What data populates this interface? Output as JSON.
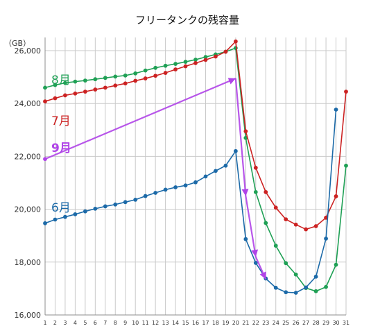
{
  "chart_data": {
    "type": "line",
    "title": "フリータンクの残容量",
    "unit_label": "（GB）",
    "ylim": [
      16000,
      26500
    ],
    "yticks": [
      16000,
      18000,
      20000,
      22000,
      24000,
      26000
    ],
    "ytick_labels": [
      "16,000",
      "18,000",
      "20,000",
      "22,000",
      "24,000",
      "26,000"
    ],
    "xlim": [
      1,
      31
    ],
    "x_categories": [
      "1",
      "2",
      "3",
      "4",
      "5",
      "6",
      "7",
      "8",
      "9",
      "10",
      "11",
      "12",
      "13",
      "14",
      "15",
      "16",
      "17",
      "18",
      "19",
      "20",
      "21",
      "22",
      "23",
      "24",
      "25",
      "26",
      "27",
      "28",
      "29",
      "30",
      "31"
    ],
    "grid": true,
    "series": [
      {
        "name": "8月",
        "color": "#1fa055",
        "x": [
          1,
          2,
          3,
          4,
          5,
          6,
          7,
          8,
          9,
          10,
          11,
          12,
          13,
          14,
          15,
          16,
          17,
          18,
          19,
          20,
          21,
          22,
          23,
          24,
          25,
          26,
          27,
          28,
          29,
          30,
          31
        ],
        "values": [
          24600,
          24700,
          24780,
          24830,
          24870,
          24920,
          24970,
          25020,
          25060,
          25140,
          25250,
          25350,
          25430,
          25500,
          25580,
          25660,
          25760,
          25860,
          25960,
          26100,
          22700,
          20650,
          19480,
          18620,
          17960,
          17530,
          17020,
          16900,
          17060,
          17900,
          21650
        ]
      },
      {
        "name": "7月",
        "color": "#cc2222",
        "x": [
          1,
          2,
          3,
          4,
          5,
          6,
          7,
          8,
          9,
          10,
          11,
          12,
          13,
          14,
          15,
          16,
          17,
          18,
          19,
          20,
          21,
          22,
          23,
          24,
          25,
          26,
          27,
          28,
          29,
          30,
          31
        ],
        "values": [
          24080,
          24200,
          24310,
          24380,
          24450,
          24530,
          24600,
          24680,
          24760,
          24860,
          24950,
          25050,
          25160,
          25290,
          25410,
          25530,
          25650,
          25780,
          25960,
          26350,
          22950,
          21570,
          20650,
          20060,
          19620,
          19420,
          19240,
          19360,
          19680,
          20490,
          24450
        ]
      },
      {
        "name": "6月",
        "color": "#1c6aa8",
        "x": [
          1,
          2,
          3,
          4,
          5,
          6,
          7,
          8,
          9,
          10,
          11,
          12,
          13,
          14,
          15,
          16,
          17,
          18,
          19,
          20,
          21,
          22,
          23,
          24,
          25,
          26,
          27,
          28,
          29,
          30
        ],
        "values": [
          19470,
          19610,
          19710,
          19810,
          19920,
          20020,
          20110,
          20180,
          20270,
          20360,
          20500,
          20620,
          20740,
          20830,
          20900,
          21020,
          21240,
          21450,
          21650,
          22200,
          18870,
          17970,
          17380,
          17030,
          16860,
          16840,
          17040,
          17450,
          18890,
          23770
        ]
      },
      {
        "name": "9月",
        "color": "#b044e8",
        "x": [
          1
        ],
        "values": [
          21900
        ]
      }
    ],
    "annotations": [
      {
        "type": "arrow-path",
        "color": "#b044e8",
        "points": [
          [
            1,
            21900
          ],
          [
            20,
            24950
          ],
          [
            21,
            20500
          ],
          [
            22,
            18200
          ],
          [
            23,
            17350
          ]
        ],
        "arrowheads_at": [
          [
            20,
            24950
          ],
          [
            21,
            20500
          ],
          [
            22,
            18200
          ],
          [
            23,
            17350
          ]
        ]
      }
    ]
  }
}
